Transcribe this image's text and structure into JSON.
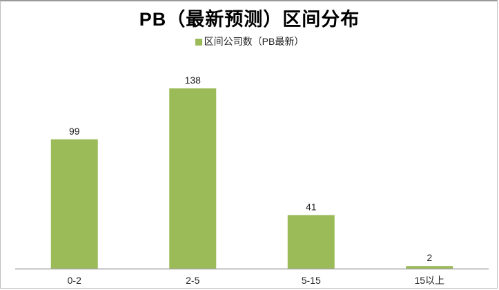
{
  "chart_data": {
    "type": "bar",
    "title": "PB（最新预测）区间分布",
    "categories": [
      "0-2",
      "2-5",
      "5-15",
      "15以上"
    ],
    "series": [
      {
        "name": "区间公司数（PB最新）",
        "values": [
          99,
          138,
          41,
          2
        ],
        "color": "#9bbb59"
      }
    ],
    "data_labels": [
      "99",
      "138",
      "41",
      "2"
    ],
    "legend": "top",
    "grid": false,
    "ylim": [
      0,
      138
    ],
    "xlabel": "",
    "ylabel": ""
  }
}
